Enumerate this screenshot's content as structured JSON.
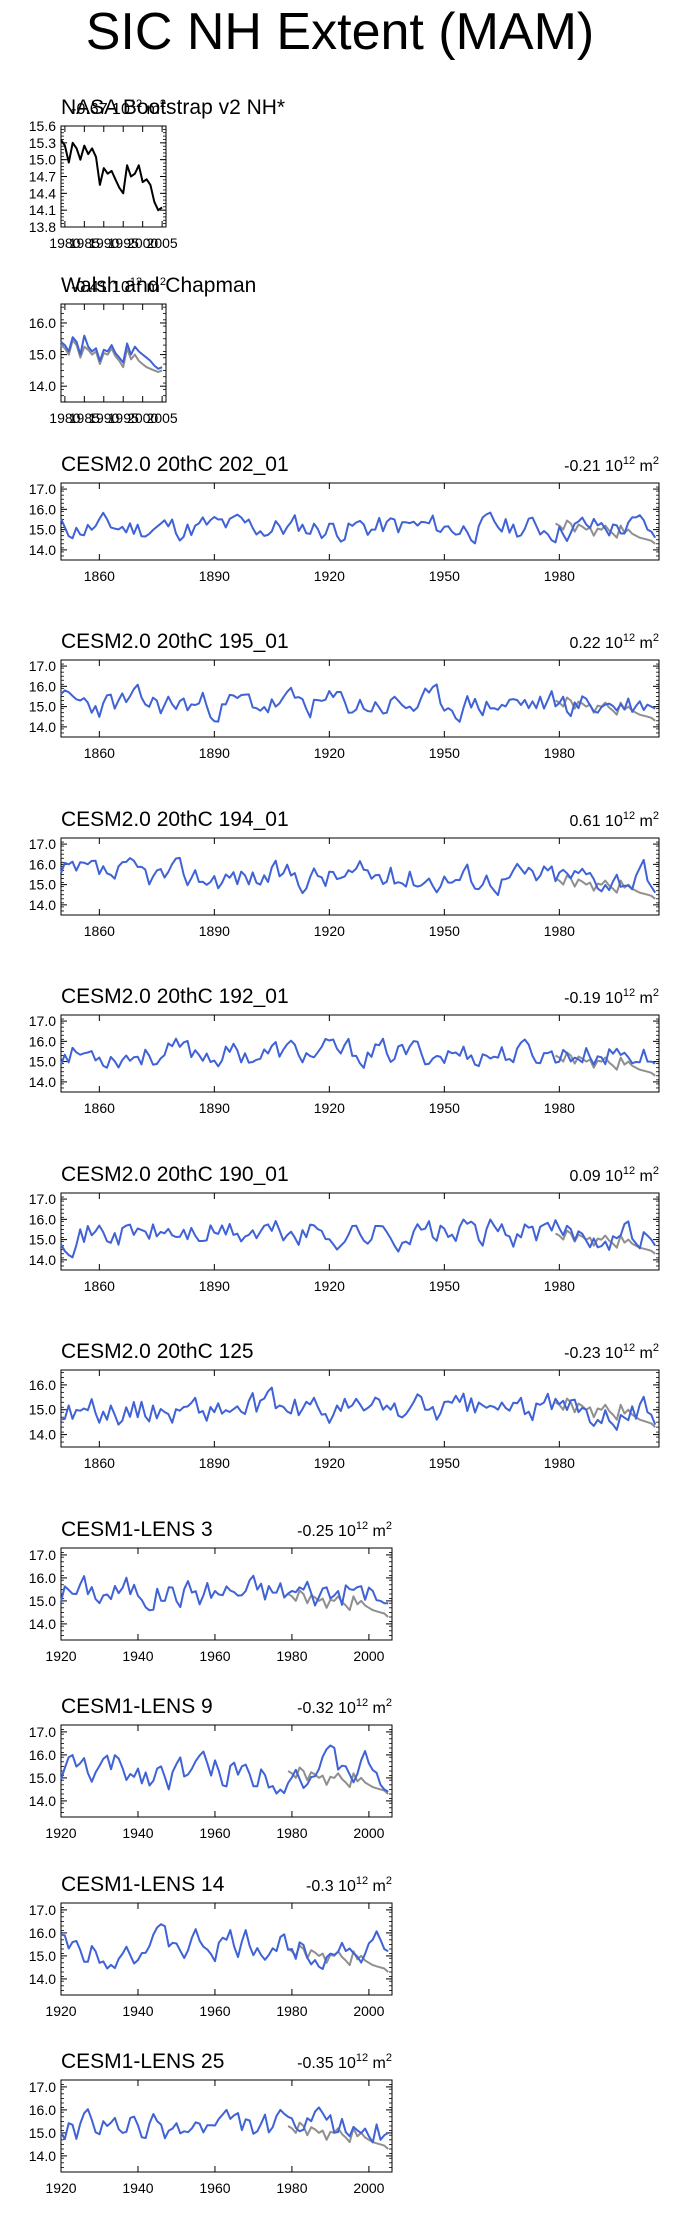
{
  "title": "SIC NH Extent (MAM)",
  "unit_base": "10",
  "unit_exp": "12",
  "unit_tail": " m",
  "unit_sq": "2",
  "colors": {
    "model": "#3f62d6",
    "observed": "#8f8f8f",
    "obs_black": "#000000",
    "axis": "#000000"
  },
  "chart_data": [
    {
      "type": "line",
      "title": "NASA Bootstrap v2 NH*",
      "corner": "-0.67 10¹² m²",
      "x_ticks": [
        "1980",
        "1985",
        "1990",
        "1995",
        "2000",
        "2005"
      ],
      "y_ticks": [
        "13.8",
        "14.1",
        "14.4",
        "14.7",
        "15.0",
        "15.3",
        "15.6"
      ],
      "xlim": [
        1979,
        2006
      ],
      "ylim": [
        13.8,
        15.6
      ],
      "series": [
        {
          "color": "#000000",
          "x0": 1979,
          "values": [
            15.35,
            15.25,
            14.95,
            15.3,
            15.2,
            15.0,
            15.25,
            15.1,
            15.2,
            15.05,
            14.55,
            14.85,
            14.75,
            14.8,
            14.65,
            14.5,
            14.4,
            14.9,
            14.7,
            14.75,
            14.9,
            14.6,
            14.65,
            14.55,
            14.25,
            14.1,
            14.15
          ]
        }
      ]
    },
    {
      "type": "line",
      "title": "Walsh and Chapman",
      "corner": "-0.41 10¹² m²",
      "x_ticks": [
        "1980",
        "1985",
        "1990",
        "1995",
        "2000",
        "2005"
      ],
      "y_ticks": [
        "14.0",
        "15.0",
        "16.0"
      ],
      "xlim": [
        1979,
        2006
      ],
      "ylim": [
        13.5,
        16.6
      ],
      "series": [
        {
          "color": "#8f8f8f",
          "x0": 1979,
          "values": [
            15.3,
            15.2,
            15.0,
            15.45,
            15.3,
            14.9,
            15.25,
            15.15,
            15.0,
            15.1,
            14.7,
            15.05,
            15.0,
            15.2,
            14.95,
            14.8,
            14.6,
            15.2,
            14.85,
            15.0,
            14.8,
            14.7,
            14.6,
            14.55,
            14.5,
            14.45,
            14.5
          ]
        },
        {
          "color": "#3f62d6",
          "x0": 1979,
          "values": [
            15.4,
            15.3,
            15.1,
            15.55,
            15.4,
            15.0,
            15.6,
            15.25,
            15.1,
            15.2,
            14.8,
            15.15,
            15.1,
            15.3,
            15.05,
            14.9,
            14.75,
            15.35,
            15.0,
            15.25,
            15.1,
            15.0,
            14.9,
            14.8,
            14.65,
            14.55,
            14.6
          ]
        }
      ]
    },
    {
      "type": "line",
      "title": "CESM2.0 20thC 202_01",
      "corner": "-0.21 10¹² m²",
      "x_ticks": [
        "1860",
        "1890",
        "1920",
        "1950",
        "1980"
      ],
      "y_ticks": [
        "14.0",
        "15.0",
        "16.0",
        "17.0"
      ],
      "xlim": [
        1850,
        2006
      ],
      "ylim": [
        13.5,
        17.3
      ],
      "series": [
        {
          "color": "#3f62d6",
          "x0": 1850,
          "seed": 11,
          "base": 15.1,
          "amp": 0.55,
          "end": [
            15.0,
            14.9,
            14.6
          ]
        },
        {
          "color": "#8f8f8f",
          "x0": 1979,
          "obs": true,
          "offset": 0.0
        }
      ]
    },
    {
      "type": "line",
      "title": "CESM2.0 20thC 195_01",
      "corner": "0.22 10¹² m²",
      "x_ticks": [
        "1860",
        "1890",
        "1920",
        "1950",
        "1980"
      ],
      "y_ticks": [
        "14.0",
        "15.0",
        "16.0",
        "17.0"
      ],
      "xlim": [
        1850,
        2006
      ],
      "ylim": [
        13.5,
        17.3
      ],
      "series": [
        {
          "color": "#3f62d6",
          "x0": 1850,
          "seed": 23,
          "base": 15.1,
          "amp": 0.6,
          "end": [
            15.1,
            15.0,
            14.9
          ]
        },
        {
          "color": "#8f8f8f",
          "x0": 1979,
          "obs": true,
          "offset": 0.0
        }
      ]
    },
    {
      "type": "line",
      "title": "CESM2.0 20thC 194_01",
      "corner": "0.61 10¹² m²",
      "x_ticks": [
        "1860",
        "1890",
        "1920",
        "1950",
        "1980"
      ],
      "y_ticks": [
        "14.0",
        "15.0",
        "16.0",
        "17.0"
      ],
      "xlim": [
        1850,
        2006
      ],
      "ylim": [
        13.5,
        17.3
      ],
      "series": [
        {
          "color": "#3f62d6",
          "x0": 1850,
          "seed": 37,
          "base": 15.4,
          "amp": 0.6,
          "end": [
            15.2,
            14.9,
            14.6
          ]
        },
        {
          "color": "#8f8f8f",
          "x0": 1979,
          "obs": true,
          "offset": 0.0
        }
      ]
    },
    {
      "type": "line",
      "title": "CESM2.0 20thC 192_01",
      "corner": "-0.19 10¹² m²",
      "x_ticks": [
        "1860",
        "1890",
        "1920",
        "1950",
        "1980"
      ],
      "y_ticks": [
        "14.0",
        "15.0",
        "16.0",
        "17.0"
      ],
      "xlim": [
        1850,
        2006
      ],
      "ylim": [
        13.5,
        17.3
      ],
      "series": [
        {
          "color": "#3f62d6",
          "x0": 1850,
          "seed": 53,
          "base": 15.4,
          "amp": 0.55,
          "end": [
            15.0,
            15.0,
            14.9
          ]
        },
        {
          "color": "#8f8f8f",
          "x0": 1979,
          "obs": true,
          "offset": 0.0
        }
      ]
    },
    {
      "type": "line",
      "title": "CESM2.0 20thC 190_01",
      "corner": "0.09 10¹² m²",
      "x_ticks": [
        "1860",
        "1890",
        "1920",
        "1950",
        "1980"
      ],
      "y_ticks": [
        "14.0",
        "15.0",
        "16.0",
        "17.0"
      ],
      "xlim": [
        1850,
        2006
      ],
      "ylim": [
        13.5,
        17.3
      ],
      "series": [
        {
          "color": "#3f62d6",
          "x0": 1850,
          "seed": 71,
          "base": 15.3,
          "amp": 0.6,
          "end": [
            15.2,
            15.0,
            14.7
          ]
        },
        {
          "color": "#8f8f8f",
          "x0": 1979,
          "obs": true,
          "offset": 0.0
        }
      ]
    },
    {
      "type": "line",
      "title": "CESM2.0 20thC 125",
      "corner": "-0.23 10¹² m²",
      "x_ticks": [
        "1860",
        "1890",
        "1920",
        "1950",
        "1980"
      ],
      "y_ticks": [
        "14.0",
        "15.0",
        "16.0"
      ],
      "xlim": [
        1850,
        2006
      ],
      "ylim": [
        13.5,
        16.6
      ],
      "series": [
        {
          "color": "#3f62d6",
          "x0": 1850,
          "seed": 89,
          "base": 15.0,
          "amp": 0.5,
          "end": [
            14.9,
            14.8,
            14.4
          ]
        },
        {
          "color": "#8f8f8f",
          "x0": 1979,
          "obs": true,
          "offset": 0.0
        }
      ]
    },
    {
      "type": "line",
      "title": "CESM1-LENS 3",
      "corner": "-0.25 10¹² m²",
      "x_ticks": [
        "1920",
        "1940",
        "1960",
        "1980",
        "2000"
      ],
      "y_ticks": [
        "14.0",
        "15.0",
        "16.0",
        "17.0"
      ],
      "xlim": [
        1920,
        2006
      ],
      "ylim": [
        13.3,
        17.3
      ],
      "series": [
        {
          "color": "#3f62d6",
          "x0": 1920,
          "seed": 101,
          "base": 15.4,
          "amp": 0.6,
          "end": [
            15.0,
            14.9,
            14.9
          ]
        },
        {
          "color": "#8f8f8f",
          "x0": 1979,
          "obs": true,
          "offset": 0.0
        }
      ]
    },
    {
      "type": "line",
      "title": "CESM1-LENS 9",
      "corner": "-0.32 10¹² m²",
      "x_ticks": [
        "1920",
        "1940",
        "1960",
        "1980",
        "2000"
      ],
      "y_ticks": [
        "14.0",
        "15.0",
        "16.0",
        "17.0"
      ],
      "xlim": [
        1920,
        2006
      ],
      "ylim": [
        13.3,
        17.3
      ],
      "series": [
        {
          "color": "#3f62d6",
          "x0": 1920,
          "seed": 131,
          "base": 15.3,
          "amp": 0.65,
          "end": [
            14.7,
            14.5,
            14.4
          ]
        },
        {
          "color": "#8f8f8f",
          "x0": 1979,
          "obs": true,
          "offset": 0.0
        }
      ]
    },
    {
      "type": "line",
      "title": "CESM1-LENS 14",
      "corner": "-0.3 10¹² m²",
      "x_ticks": [
        "1920",
        "1940",
        "1960",
        "1980",
        "2000"
      ],
      "y_ticks": [
        "14.0",
        "15.0",
        "16.0",
        "17.0"
      ],
      "xlim": [
        1920,
        2006
      ],
      "ylim": [
        13.3,
        17.3
      ],
      "series": [
        {
          "color": "#3f62d6",
          "x0": 1920,
          "seed": 151,
          "base": 15.4,
          "amp": 0.6,
          "end": [
            15.7,
            15.3,
            15.2
          ]
        },
        {
          "color": "#8f8f8f",
          "x0": 1979,
          "obs": true,
          "offset": 0.0
        }
      ]
    },
    {
      "type": "line",
      "title": "CESM1-LENS 25",
      "corner": "-0.35 10¹² m²",
      "x_ticks": [
        "1920",
        "1940",
        "1960",
        "1980",
        "2000"
      ],
      "y_ticks": [
        "14.0",
        "15.0",
        "16.0",
        "17.0"
      ],
      "xlim": [
        1920,
        2006
      ],
      "ylim": [
        13.3,
        17.3
      ],
      "series": [
        {
          "color": "#3f62d6",
          "x0": 1920,
          "seed": 173,
          "base": 15.2,
          "amp": 0.55,
          "end": [
            14.7,
            14.9,
            15.0
          ]
        },
        {
          "color": "#8f8f8f",
          "x0": 1979,
          "obs": true,
          "offset": 0.0
        }
      ]
    }
  ]
}
